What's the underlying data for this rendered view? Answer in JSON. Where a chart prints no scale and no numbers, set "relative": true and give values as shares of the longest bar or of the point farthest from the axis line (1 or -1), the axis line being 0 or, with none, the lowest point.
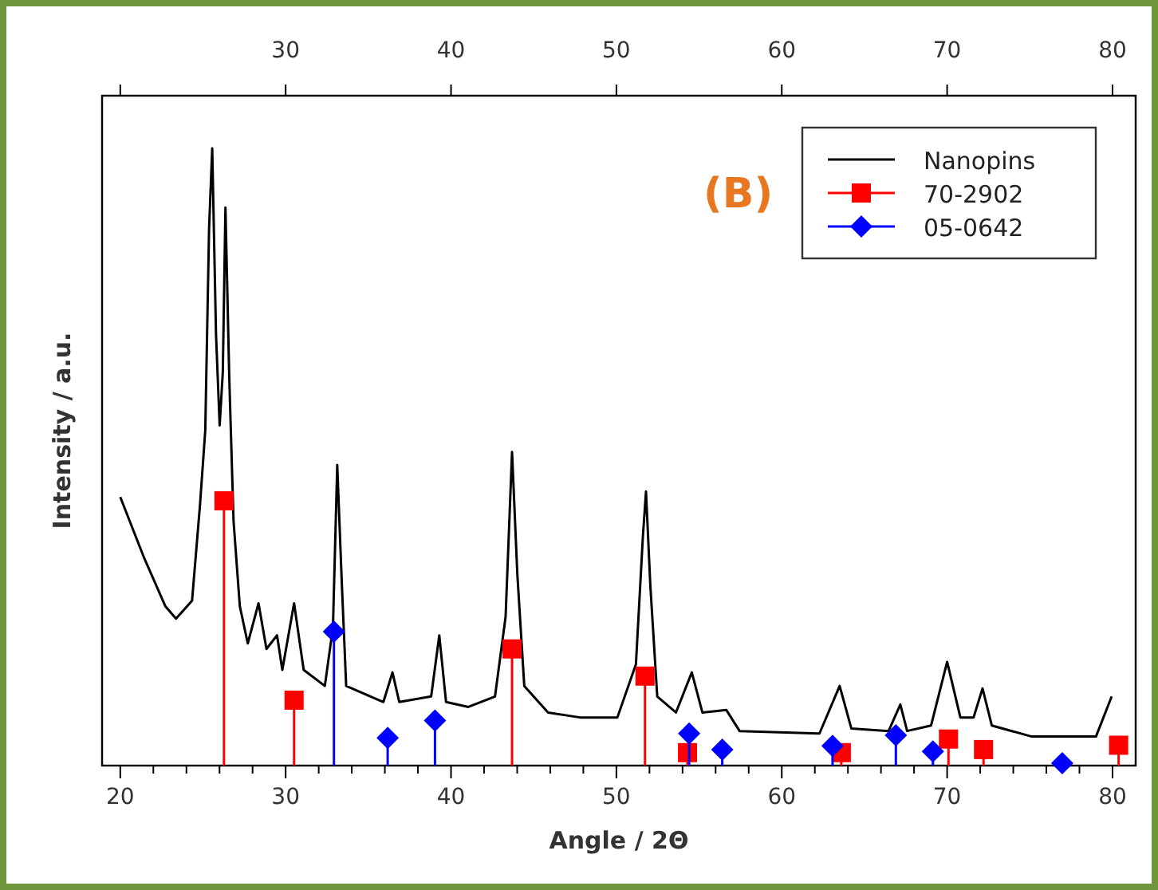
{
  "chart_data": {
    "type": "line",
    "xlabel": "Angle / 2Θ",
    "ylabel": "Intensity / a.u.",
    "relative": true,
    "grid": false,
    "legend": "top right",
    "annotations": [
      "(B)"
    ],
    "xlim": [
      18.9,
      81.4
    ],
    "xticks": [
      20,
      {
        "value": 22,
        "label": null
      },
      {
        "value": 24,
        "label": null
      },
      {
        "value": 26,
        "label": null
      },
      {
        "value": 28,
        "label": null
      },
      30,
      {
        "value": 32,
        "label": null
      },
      {
        "value": 34,
        "label": null
      },
      {
        "value": 36,
        "label": null
      },
      {
        "value": 38,
        "label": null
      },
      40,
      {
        "value": 42,
        "label": null
      },
      {
        "value": 44,
        "label": null
      },
      {
        "value": 46,
        "label": null
      },
      {
        "value": 48,
        "label": null
      },
      50,
      {
        "value": 52,
        "label": null
      },
      {
        "value": 54,
        "label": null
      },
      {
        "value": 56,
        "label": null
      },
      {
        "value": 58,
        "label": null
      },
      60,
      {
        "value": 62,
        "label": null
      },
      {
        "value": 64,
        "label": null
      },
      {
        "value": 66,
        "label": null
      },
      {
        "value": 68,
        "label": null
      },
      70,
      {
        "value": 72,
        "label": null
      },
      {
        "value": 74,
        "label": null
      },
      {
        "value": 76,
        "label": null
      },
      {
        "value": 78,
        "label": null
      },
      80
    ],
    "x2lim": [
      18.9,
      81.4
    ],
    "x2ticks": [
      {
        "value": 20,
        "label": null
      },
      30,
      40,
      50,
      60,
      70,
      80
    ],
    "series": [
      {
        "name": "Nanopins",
        "color": "#000000",
        "x": [
          20.0,
          21.45,
          22.73,
          23.37,
          24.34,
          24.82,
          25.14,
          25.37,
          25.56,
          25.79,
          26.01,
          26.2,
          26.36,
          26.59,
          26.85,
          27.23,
          27.71,
          28.36,
          28.84,
          29.48,
          29.8,
          30.51,
          31.09,
          32.37,
          32.86,
          33.12,
          33.4,
          33.66,
          35.91,
          36.46,
          36.87,
          38.8,
          39.29,
          39.7,
          41.05,
          42.66,
          43.3,
          43.69,
          44.01,
          44.43,
          45.87,
          47.8,
          50.06,
          51.18,
          51.6,
          51.79,
          52.05,
          52.47,
          53.6,
          54.56,
          55.2,
          56.65,
          57.45,
          62.28,
          63.5,
          64.21,
          66.46,
          67.17,
          67.58,
          69.03,
          70.0,
          70.8,
          71.6,
          72.14,
          72.7,
          75.12,
          79.0,
          79.95
        ],
        "values": [
          0.435,
          0.336,
          0.258,
          0.238,
          0.267,
          0.422,
          0.543,
          0.87,
          1.0,
          0.698,
          0.551,
          0.637,
          0.904,
          0.629,
          0.396,
          0.258,
          0.198,
          0.263,
          0.189,
          0.211,
          0.155,
          0.263,
          0.155,
          0.129,
          0.224,
          0.487,
          0.293,
          0.129,
          0.103,
          0.151,
          0.103,
          0.112,
          0.211,
          0.103,
          0.095,
          0.112,
          0.241,
          0.508,
          0.31,
          0.129,
          0.086,
          0.078,
          0.078,
          0.164,
          0.37,
          0.444,
          0.293,
          0.112,
          0.086,
          0.151,
          0.086,
          0.09,
          0.056,
          0.052,
          0.129,
          0.06,
          0.056,
          0.099,
          0.056,
          0.065,
          0.168,
          0.078,
          0.078,
          0.125,
          0.065,
          0.047,
          0.047,
          0.112
        ]
      },
      {
        "name": "70-2902",
        "type": "lollipop",
        "marker": "square",
        "color": "#ff0000",
        "x": [
          26.27,
          30.51,
          43.69,
          51.73,
          54.3,
          63.6,
          70.08,
          72.2,
          80.37
        ],
        "values": [
          0.429,
          0.106,
          0.189,
          0.145,
          0.021,
          0.021,
          0.043,
          0.026,
          0.033
        ]
      },
      {
        "name": "05-0642",
        "type": "lollipop",
        "marker": "diamond",
        "color": "#0000ff",
        "x": [
          32.92,
          36.17,
          39.03,
          54.4,
          56.4,
          63.07,
          66.9,
          69.14,
          76.96
        ],
        "values": [
          0.217,
          0.045,
          0.073,
          0.052,
          0.026,
          0.032,
          0.049,
          0.023,
          0.004
        ]
      }
    ]
  }
}
